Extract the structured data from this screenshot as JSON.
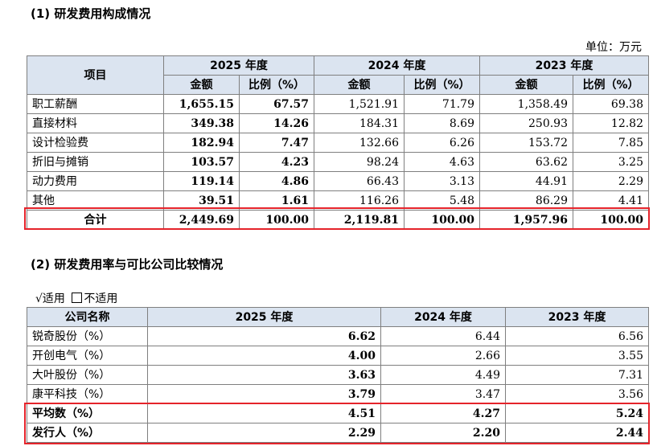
{
  "section1": {
    "title": "(1)  研发费用构成情况",
    "unit": "单位：万元",
    "headers": {
      "item": "项目",
      "years": [
        "2025 年度",
        "2024 年度",
        "2023 年度"
      ],
      "amount": "金额",
      "ratio": "比例（%）"
    },
    "rows": [
      {
        "name": "职工薪酬",
        "v": [
          "1,655.15",
          "67.57",
          "1,521.91",
          "71.79",
          "1,358.49",
          "69.38"
        ]
      },
      {
        "name": "直接材料",
        "v": [
          "349.38",
          "14.26",
          "184.31",
          "8.69",
          "250.93",
          "12.82"
        ]
      },
      {
        "name": "设计检验费",
        "v": [
          "182.94",
          "7.47",
          "132.66",
          "6.26",
          "153.72",
          "7.85"
        ]
      },
      {
        "name": "折旧与摊销",
        "v": [
          "103.57",
          "4.23",
          "98.24",
          "4.63",
          "63.62",
          "3.25"
        ]
      },
      {
        "name": "动力费用",
        "v": [
          "119.14",
          "4.86",
          "66.43",
          "3.13",
          "44.91",
          "2.29"
        ]
      },
      {
        "name": "其他",
        "v": [
          "39.51",
          "1.61",
          "116.26",
          "5.48",
          "86.29",
          "4.41"
        ]
      }
    ],
    "total": {
      "name": "合计",
      "v": [
        "2,449.69",
        "100.00",
        "2,119.81",
        "100.00",
        "1,957.96",
        "100.00"
      ]
    }
  },
  "section2": {
    "title": "(2)  研发费用率与可比公司比较情况",
    "applicable_check": "√",
    "applicable_label": "适用",
    "not_applicable_label": "不适用",
    "headers": [
      "公司名称",
      "2025 年度",
      "2024 年度",
      "2023 年度"
    ],
    "rows": [
      {
        "name": "锐奇股份（%）",
        "v": [
          "6.62",
          "6.44",
          "6.56"
        ]
      },
      {
        "name": "开创电气（%）",
        "v": [
          "4.00",
          "2.66",
          "3.55"
        ]
      },
      {
        "name": "大叶股份（%）",
        "v": [
          "3.63",
          "4.49",
          "7.31"
        ]
      },
      {
        "name": "康平科技（%）",
        "v": [
          "3.79",
          "3.47",
          "3.56"
        ]
      }
    ],
    "average": {
      "name": "平均数（%）",
      "v": [
        "4.51",
        "4.27",
        "5.24"
      ]
    },
    "issuer": {
      "name": "发行人（%）",
      "v": [
        "2.29",
        "2.20",
        "2.44"
      ]
    }
  },
  "colors": {
    "header_bg": "#dbe4f0",
    "highlight_border": "#e5232a",
    "grid": "#7f7f7f"
  }
}
